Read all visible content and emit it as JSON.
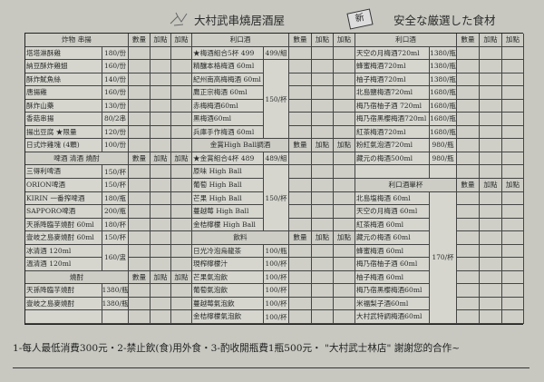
{
  "header": {
    "title": "大村武串燒居酒屋",
    "stamp": "新",
    "tagline": "安全な厳選した食材"
  },
  "order_columns": [
    "數量",
    "加點",
    "加點"
  ],
  "columns": [
    {
      "sections": [
        {
          "title": "炸物 串揚",
          "entries": [
            {
              "name": "塔塔淋酥雞",
              "price": "180/份"
            },
            {
              "name": "納豆酥炸雞翅",
              "price": "160/份"
            },
            {
              "name": "酥炸魷魚絲",
              "price": "140/份"
            },
            {
              "name": "唐揚雞",
              "price": "160/份"
            },
            {
              "name": "酥炸山藥",
              "price": "130/份"
            },
            {
              "name": "香菇串揚",
              "price": "80/2串"
            },
            {
              "name": "揚出豆腐 ★限量",
              "price": "120/份"
            },
            {
              "name": "日式炸雞塊 (4顆)",
              "price": "100/份"
            }
          ]
        },
        {
          "title": "啤酒 清酒 燒酎",
          "entries": [
            {
              "name": "三得利啤酒",
              "price": "150/杯"
            },
            {
              "name": "ORION啤酒",
              "price": "150/杯"
            },
            {
              "name": "KIRIN 一番搾啤酒",
              "price": "180/瓶"
            },
            {
              "name": "SAPPORO啤酒",
              "price": "200/瓶"
            },
            {
              "name": "天孫降臨芋燒酎 60ml",
              "price": "180/杯"
            },
            {
              "name": "壹岐之島麥燒酎 60ml",
              "price": "150/杯"
            },
            {
              "price": "160/盅",
              "names": [
                "冰清酒 120ml",
                "溫清酒 120ml"
              ]
            }
          ]
        },
        {
          "title": "燒酎",
          "entries": [
            {
              "name": "天孫降臨芋燒酎",
              "price": "1380/瓶"
            },
            {
              "name": "壹岐之島麥燒酎",
              "price": "1380/瓶"
            },
            {
              "name": "",
              "price": ""
            }
          ]
        }
      ]
    },
    {
      "sections": [
        {
          "title": "利口酒",
          "entries": [
            {
              "name": "★梅酒組合5杯 499",
              "price": "499/組"
            },
            {
              "price": "150/杯",
              "names": [
                "精釀本格梅酒 60ml",
                "紀州南高梅梅酒 60ml",
                "鷹正宗梅酒 60ml",
                "赤梅梅酒60ml",
                "黑梅酒60ml",
                "兵庫手作梅酒 60ml"
              ]
            }
          ]
        },
        {
          "title": "金賞High Ball調酒",
          "entries": [
            {
              "name": "★金賞組合4杯 489",
              "price": "489/組"
            },
            {
              "price": "150/杯",
              "names": [
                "原味 High Ball",
                "葡萄 High Ball",
                "芒果 High Ball",
                "蔓越莓 High Ball",
                "金桔檸檬 High Ball"
              ]
            }
          ]
        },
        {
          "title": "飲料",
          "entries": [
            {
              "name": "日光冷泡烏龍茶",
              "price": "100/瓶"
            },
            {
              "name": "現榨檸檬汁",
              "price": "100/杯"
            },
            {
              "name": "芒果氣泡飲",
              "price": "100/杯"
            },
            {
              "name": "葡萄氣泡飲",
              "price": "100/杯"
            },
            {
              "name": "蔓越莓氣泡飲",
              "price": "100/杯"
            },
            {
              "name": "金桔檸檬氣泡飲",
              "price": "100/杯"
            }
          ]
        }
      ]
    },
    {
      "sections": [
        {
          "title": "利口酒",
          "entries": [
            {
              "name": "天空の月梅酒720ml",
              "price": "1380/瓶"
            },
            {
              "name": "蜂蜜梅酒720ml",
              "price": "1380/瓶"
            },
            {
              "name": "柚子梅酒720ml",
              "price": "1380/瓶"
            },
            {
              "name": "北島鹽梅酒720ml",
              "price": "1680/瓶"
            },
            {
              "name": "梅乃宿柚子酒 720ml",
              "price": "1680/瓶"
            },
            {
              "name": "梅乃宿黑櫻梅酒720ml",
              "price": "1680/瓶"
            },
            {
              "name": "紅茶梅酒720ml",
              "price": "1680/瓶"
            },
            {
              "name": "粉紅氣泡酒720ml",
              "price": "980/瓶"
            },
            {
              "name": "藏元の梅酒500ml",
              "price": "980/瓶"
            },
            {
              "name": "",
              "price": ""
            }
          ]
        },
        {
          "title": "利口酒單杯",
          "entries": [
            {
              "price": "170/杯",
              "names": [
                "北島塩梅酒 60ml",
                "天空の月梅酒 60ml",
                "紅茶梅酒 60ml",
                "藏元の梅酒 60ml",
                "蜂蜜梅酒 60ml",
                "梅乃宿柚子酒 60ml",
                "柚子梅酒 60ml",
                "梅乃宿黑櫻梅酒60ml",
                "米福梨子酒60ml",
                "大村武特調梅酒60ml"
              ]
            }
          ]
        }
      ]
    }
  ],
  "footer": "1-每人最低消費300元・2-禁止飲(食)用外食・3-酌收開瓶費1瓶500元・ \"大村武士林店\" 謝謝您的合作~"
}
